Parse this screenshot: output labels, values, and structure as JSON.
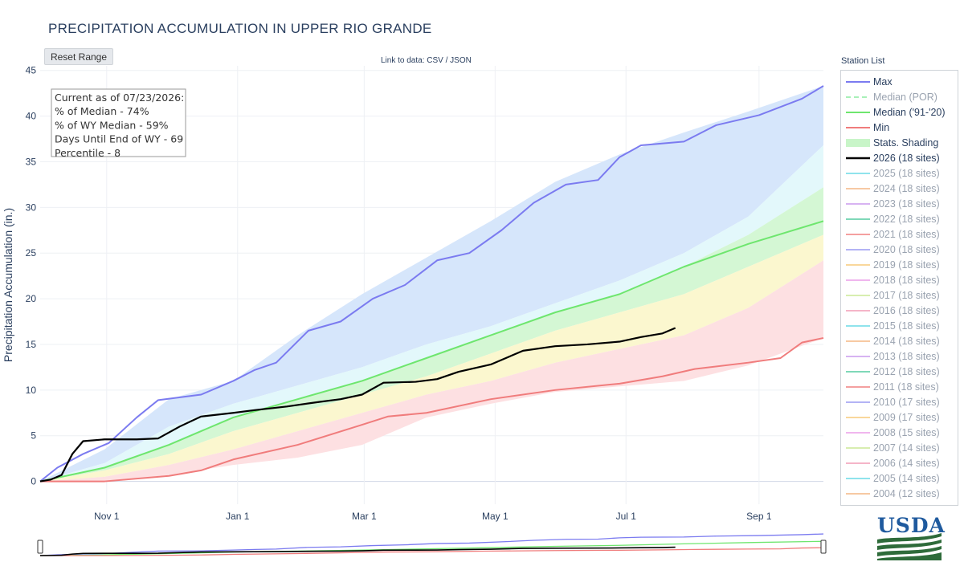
{
  "page": {
    "title": "PRECIPITATION ACCUMULATION IN UPPER RIO GRANDE",
    "reset_button": "Reset Range",
    "data_link_prefix": "Link to data: ",
    "data_link_csv": "CSV",
    "data_link_sep": " / ",
    "data_link_json": "JSON",
    "legend_title": "Station List",
    "logo_text": "USDA"
  },
  "info_box": [
    "Current as of 07/23/2026:",
    "% of Median - 74%",
    "% of WY Median - 59%",
    "Days Until End of WY - 69",
    "Percentile - 8"
  ],
  "legend": [
    {
      "label": "Max",
      "color": "#7b7bf0",
      "style": "line"
    },
    {
      "label": "Median (POR)",
      "color": "#a8f0b8",
      "style": "dash",
      "muted": true
    },
    {
      "label": "Median ('91-'20)",
      "color": "#6ee66e",
      "style": "line"
    },
    {
      "label": "Min",
      "color": "#f07c7c",
      "style": "line"
    },
    {
      "label": "Stats. Shading",
      "color": "#c8f5c8",
      "style": "box"
    },
    {
      "label": "2026 (18 sites)",
      "color": "#000000",
      "style": "bold"
    },
    {
      "label": "2025 (18 sites)",
      "color": "#8fe3ec",
      "style": "line",
      "muted": true
    },
    {
      "label": "2024 (18 sites)",
      "color": "#f7c9a3",
      "style": "line",
      "muted": true
    },
    {
      "label": "2023 (18 sites)",
      "color": "#d7b3f2",
      "style": "line",
      "muted": true
    },
    {
      "label": "2022 (18 sites)",
      "color": "#7fd8b8",
      "style": "line",
      "muted": true
    },
    {
      "label": "2021 (18 sites)",
      "color": "#f4a0a0",
      "style": "line",
      "muted": true
    },
    {
      "label": "2020 (18 sites)",
      "color": "#b3b3f5",
      "style": "line",
      "muted": true
    },
    {
      "label": "2019 (18 sites)",
      "color": "#f9d79b",
      "style": "line",
      "muted": true
    },
    {
      "label": "2018 (18 sites)",
      "color": "#f0b6ee",
      "style": "line",
      "muted": true
    },
    {
      "label": "2017 (18 sites)",
      "color": "#d8eeb0",
      "style": "line",
      "muted": true
    },
    {
      "label": "2016 (18 sites)",
      "color": "#f5b5c8",
      "style": "line",
      "muted": true
    },
    {
      "label": "2015 (18 sites)",
      "color": "#8fe3ec",
      "style": "line",
      "muted": true
    },
    {
      "label": "2014 (18 sites)",
      "color": "#f7c9a3",
      "style": "line",
      "muted": true
    },
    {
      "label": "2013 (18 sites)",
      "color": "#d7b3f2",
      "style": "line",
      "muted": true
    },
    {
      "label": "2012 (18 sites)",
      "color": "#7fd8b8",
      "style": "line",
      "muted": true
    },
    {
      "label": "2011 (18 sites)",
      "color": "#f4a0a0",
      "style": "line",
      "muted": true
    },
    {
      "label": "2010 (17 sites)",
      "color": "#b3b3f5",
      "style": "line",
      "muted": true
    },
    {
      "label": "2009 (17 sites)",
      "color": "#f9d79b",
      "style": "line",
      "muted": true
    },
    {
      "label": "2008 (15 sites)",
      "color": "#f0b6ee",
      "style": "line",
      "muted": true
    },
    {
      "label": "2007 (14 sites)",
      "color": "#d8eeb0",
      "style": "line",
      "muted": true
    },
    {
      "label": "2006 (14 sites)",
      "color": "#f5b5c8",
      "style": "line",
      "muted": true
    },
    {
      "label": "2005 (14 sites)",
      "color": "#8fe3ec",
      "style": "line",
      "muted": true
    },
    {
      "label": "2004 (12 sites)",
      "color": "#f7c9a3",
      "style": "line",
      "muted": true
    }
  ],
  "chart_data": {
    "type": "line",
    "title": "PRECIPITATION ACCUMULATION IN UPPER RIO GRANDE",
    "ylabel": "Precipitation Accumulation (in.)",
    "xlabel": "",
    "ylim": [
      -2.5,
      45.5
    ],
    "yticks": [
      0,
      5,
      10,
      15,
      20,
      25,
      30,
      35,
      40,
      45
    ],
    "x_range": [
      "Oct 1",
      "Sep 30"
    ],
    "xticks": [
      {
        "label": "Nov  1",
        "date": "Nov 1"
      },
      {
        "label": "Jan  1",
        "date": "Jan 1"
      },
      {
        "label": "Mar  1",
        "date": "Mar 1"
      },
      {
        "label": "May  1",
        "date": "May 1"
      },
      {
        "label": "Jul  1",
        "date": "Jul 1"
      },
      {
        "label": "Sep  1",
        "date": "Sep 1"
      }
    ],
    "grid": true,
    "legend_position": "right",
    "bands": [
      {
        "name": "max-to-90th",
        "color": "#d6e6fb",
        "lower": [
          [
            0,
            0
          ],
          [
            30,
            2
          ],
          [
            60,
            6
          ],
          [
            90,
            8.5
          ],
          [
            120,
            10.5
          ],
          [
            150,
            12.5
          ],
          [
            180,
            15
          ],
          [
            210,
            17
          ],
          [
            240,
            19.5
          ],
          [
            270,
            22
          ],
          [
            300,
            25
          ],
          [
            330,
            29
          ],
          [
            365,
            36.8
          ]
        ],
        "upper": [
          [
            0,
            0
          ],
          [
            30,
            3.5
          ],
          [
            60,
            9
          ],
          [
            90,
            11
          ],
          [
            120,
            16
          ],
          [
            150,
            20.5
          ],
          [
            180,
            24.5
          ],
          [
            210,
            28.5
          ],
          [
            240,
            32.8
          ],
          [
            270,
            35.8
          ],
          [
            300,
            38.2
          ],
          [
            330,
            40.5
          ],
          [
            365,
            43.3
          ]
        ]
      },
      {
        "name": "90th-to-70th",
        "color": "#e3f8fb",
        "lower": [
          [
            0,
            0
          ],
          [
            30,
            1.5
          ],
          [
            60,
            4
          ],
          [
            90,
            7
          ],
          [
            120,
            9
          ],
          [
            150,
            11
          ],
          [
            180,
            13.5
          ],
          [
            210,
            16
          ],
          [
            240,
            18.5
          ],
          [
            270,
            20.5
          ],
          [
            300,
            23.5
          ],
          [
            330,
            27
          ],
          [
            365,
            32.2
          ]
        ],
        "upper": [
          [
            0,
            0
          ],
          [
            30,
            2
          ],
          [
            60,
            6
          ],
          [
            90,
            8.5
          ],
          [
            120,
            10.5
          ],
          [
            150,
            12.5
          ],
          [
            180,
            15
          ],
          [
            210,
            17
          ],
          [
            240,
            19.5
          ],
          [
            270,
            22
          ],
          [
            300,
            25
          ],
          [
            330,
            29
          ],
          [
            365,
            36.8
          ]
        ]
      },
      {
        "name": "70th-to-50th",
        "color": "#d4f7d4",
        "lower": [
          [
            0,
            0
          ],
          [
            30,
            1.2
          ],
          [
            60,
            3
          ],
          [
            90,
            5.5
          ],
          [
            120,
            7.5
          ],
          [
            150,
            9.5
          ],
          [
            180,
            11.5
          ],
          [
            210,
            14
          ],
          [
            240,
            16.5
          ],
          [
            270,
            18.5
          ],
          [
            300,
            20.5
          ],
          [
            330,
            23.5
          ],
          [
            365,
            27
          ]
        ],
        "upper": [
          [
            0,
            0
          ],
          [
            30,
            1.5
          ],
          [
            60,
            4
          ],
          [
            90,
            7
          ],
          [
            120,
            9
          ],
          [
            150,
            11
          ],
          [
            180,
            13.5
          ],
          [
            210,
            16
          ],
          [
            240,
            18.5
          ],
          [
            270,
            20.5
          ],
          [
            300,
            23.5
          ],
          [
            330,
            27
          ],
          [
            365,
            32.2
          ]
        ]
      },
      {
        "name": "50th-to-30th",
        "color": "#fbf7cf",
        "lower": [
          [
            0,
            0
          ],
          [
            30,
            0.5
          ],
          [
            60,
            1.8
          ],
          [
            90,
            3.5
          ],
          [
            120,
            5.5
          ],
          [
            150,
            7.5
          ],
          [
            180,
            9.5
          ],
          [
            210,
            11
          ],
          [
            240,
            13
          ],
          [
            270,
            14.5
          ],
          [
            300,
            16
          ],
          [
            330,
            19
          ],
          [
            365,
            24.2
          ]
        ],
        "upper": [
          [
            0,
            0
          ],
          [
            30,
            1.2
          ],
          [
            60,
            3
          ],
          [
            90,
            5.5
          ],
          [
            120,
            7.5
          ],
          [
            150,
            9.5
          ],
          [
            180,
            11.5
          ],
          [
            210,
            14
          ],
          [
            240,
            16.5
          ],
          [
            270,
            18.5
          ],
          [
            300,
            20.5
          ],
          [
            330,
            23.5
          ],
          [
            365,
            27
          ]
        ]
      },
      {
        "name": "30th-to-min",
        "color": "#fde0e2",
        "lower": [
          [
            0,
            0
          ],
          [
            30,
            0
          ],
          [
            60,
            0.7
          ],
          [
            90,
            1.8
          ],
          [
            120,
            2.6
          ],
          [
            150,
            4
          ],
          [
            180,
            7
          ],
          [
            210,
            8.5
          ],
          [
            240,
            9.8
          ],
          [
            270,
            10.4
          ],
          [
            300,
            11
          ],
          [
            330,
            12.7
          ],
          [
            365,
            15.7
          ]
        ],
        "upper": [
          [
            0,
            0
          ],
          [
            30,
            0.5
          ],
          [
            60,
            1.8
          ],
          [
            90,
            3.5
          ],
          [
            120,
            5.5
          ],
          [
            150,
            7.5
          ],
          [
            180,
            9.5
          ],
          [
            210,
            11
          ],
          [
            240,
            13
          ],
          [
            270,
            14.5
          ],
          [
            300,
            16
          ],
          [
            330,
            19
          ],
          [
            365,
            24.2
          ]
        ]
      }
    ],
    "series": [
      {
        "name": "Max",
        "color": "#7b7bf0",
        "width": 2,
        "points": [
          [
            0,
            0
          ],
          [
            8,
            1.5
          ],
          [
            20,
            3
          ],
          [
            32,
            4.2
          ],
          [
            45,
            7
          ],
          [
            55,
            8.9
          ],
          [
            75,
            9.5
          ],
          [
            90,
            11
          ],
          [
            100,
            12.2
          ],
          [
            110,
            13
          ],
          [
            125,
            16.5
          ],
          [
            140,
            17.5
          ],
          [
            155,
            20
          ],
          [
            170,
            21.5
          ],
          [
            185,
            24.2
          ],
          [
            200,
            25
          ],
          [
            215,
            27.5
          ],
          [
            230,
            30.5
          ],
          [
            245,
            32.5
          ],
          [
            260,
            33
          ],
          [
            270,
            35.5
          ],
          [
            280,
            36.8
          ],
          [
            300,
            37.2
          ],
          [
            315,
            39
          ],
          [
            335,
            40.1
          ],
          [
            355,
            41.9
          ],
          [
            365,
            43.3
          ]
        ]
      },
      {
        "name": "Median ('91-'20)",
        "color": "#6ee66e",
        "width": 2,
        "points": [
          [
            0,
            0
          ],
          [
            30,
            1.5
          ],
          [
            60,
            4
          ],
          [
            90,
            7
          ],
          [
            120,
            9
          ],
          [
            150,
            11
          ],
          [
            180,
            13.5
          ],
          [
            210,
            16
          ],
          [
            240,
            18.5
          ],
          [
            270,
            20.5
          ],
          [
            300,
            23.5
          ],
          [
            330,
            26
          ],
          [
            365,
            28.5
          ]
        ]
      },
      {
        "name": "Min",
        "color": "#f07c7c",
        "width": 2,
        "points": [
          [
            0,
            0
          ],
          [
            30,
            0
          ],
          [
            60,
            0.6
          ],
          [
            75,
            1.2
          ],
          [
            90,
            2.4
          ],
          [
            120,
            4
          ],
          [
            150,
            6.2
          ],
          [
            162,
            7.1
          ],
          [
            180,
            7.5
          ],
          [
            210,
            9
          ],
          [
            240,
            10
          ],
          [
            270,
            10.7
          ],
          [
            290,
            11.5
          ],
          [
            305,
            12.3
          ],
          [
            330,
            13
          ],
          [
            345,
            13.5
          ],
          [
            355,
            15.2
          ],
          [
            365,
            15.7
          ]
        ]
      },
      {
        "name": "2026 (18 sites)",
        "color": "#000000",
        "width": 2.2,
        "points": [
          [
            0,
            0
          ],
          [
            5,
            0.2
          ],
          [
            10,
            0.7
          ],
          [
            15,
            3
          ],
          [
            20,
            4.4
          ],
          [
            30,
            4.6
          ],
          [
            45,
            4.6
          ],
          [
            55,
            4.7
          ],
          [
            65,
            6
          ],
          [
            75,
            7.1
          ],
          [
            90,
            7.5
          ],
          [
            100,
            7.8
          ],
          [
            115,
            8.2
          ],
          [
            130,
            8.7
          ],
          [
            140,
            9
          ],
          [
            150,
            9.5
          ],
          [
            160,
            10.8
          ],
          [
            175,
            10.9
          ],
          [
            185,
            11.2
          ],
          [
            195,
            12
          ],
          [
            210,
            12.8
          ],
          [
            225,
            14.3
          ],
          [
            240,
            14.8
          ],
          [
            255,
            15
          ],
          [
            270,
            15.3
          ],
          [
            280,
            15.8
          ],
          [
            290,
            16.2
          ],
          [
            296,
            16.8
          ]
        ]
      }
    ]
  }
}
